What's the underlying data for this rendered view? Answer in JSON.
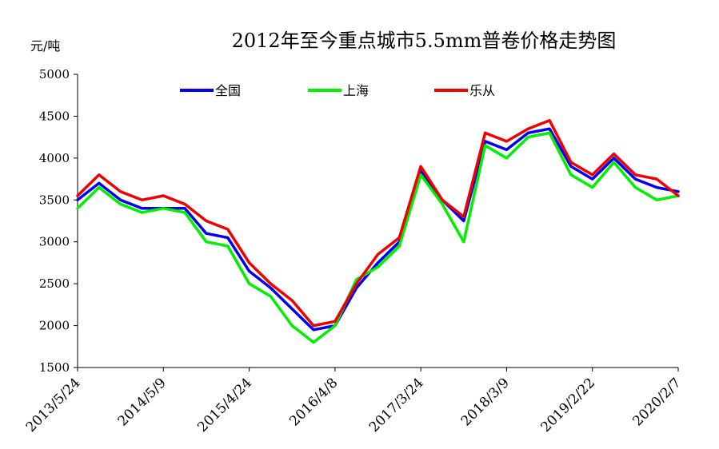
{
  "chart_data": {
    "type": "line",
    "title": "2012年至今重点城市5.5mm普卷价格走势图",
    "ylabel": "元/吨",
    "xlabel": "",
    "ylim": [
      1500,
      5000
    ],
    "yticks": [
      1500,
      2000,
      2500,
      3000,
      3500,
      4000,
      4500,
      5000
    ],
    "x_tick_labels": [
      "2013/5/24",
      "2014/5/9",
      "2015/4/24",
      "2016/4/8",
      "2017/3/24",
      "2018/3/9",
      "2019/2/22",
      "2020/2/7"
    ],
    "grid": false,
    "legend_position": "top",
    "x": [
      "2013/5/24",
      "2013/8/24",
      "2013/11/24",
      "2014/2/24",
      "2014/5/9",
      "2014/8/9",
      "2014/11/9",
      "2015/2/9",
      "2015/4/24",
      "2015/7/24",
      "2015/10/24",
      "2016/1/24",
      "2016/4/8",
      "2016/6/8",
      "2016/9/8",
      "2016/12/8",
      "2017/3/24",
      "2017/6/24",
      "2017/9/24",
      "2017/12/24",
      "2018/3/9",
      "2018/6/9",
      "2018/9/9",
      "2018/12/9",
      "2019/2/22",
      "2019/5/22",
      "2019/8/22",
      "2019/11/22",
      "2020/2/7"
    ],
    "series": [
      {
        "name": "全国",
        "color": "#0000ee",
        "values": [
          3500,
          3700,
          3500,
          3400,
          3400,
          3400,
          3100,
          3050,
          2650,
          2450,
          2200,
          1950,
          2000,
          2450,
          2750,
          3000,
          3850,
          3500,
          3250,
          4200,
          4100,
          4300,
          4350,
          3900,
          3750,
          4000,
          3750,
          3650,
          3600
        ]
      },
      {
        "name": "上海",
        "color": "#00ee00",
        "values": [
          3400,
          3650,
          3450,
          3350,
          3400,
          3350,
          3000,
          2950,
          2500,
          2350,
          2000,
          1800,
          2000,
          2550,
          2700,
          2950,
          3800,
          3450,
          3000,
          4150,
          4000,
          4250,
          4300,
          3800,
          3650,
          3950,
          3650,
          3500,
          3550
        ]
      },
      {
        "name": "乐从",
        "color": "#ee0000",
        "values": [
          3550,
          3800,
          3600,
          3500,
          3550,
          3450,
          3250,
          3150,
          2750,
          2500,
          2300,
          2000,
          2050,
          2500,
          2850,
          3050,
          3900,
          3500,
          3300,
          4300,
          4200,
          4350,
          4450,
          3950,
          3800,
          4050,
          3800,
          3750,
          3550
        ]
      }
    ]
  }
}
